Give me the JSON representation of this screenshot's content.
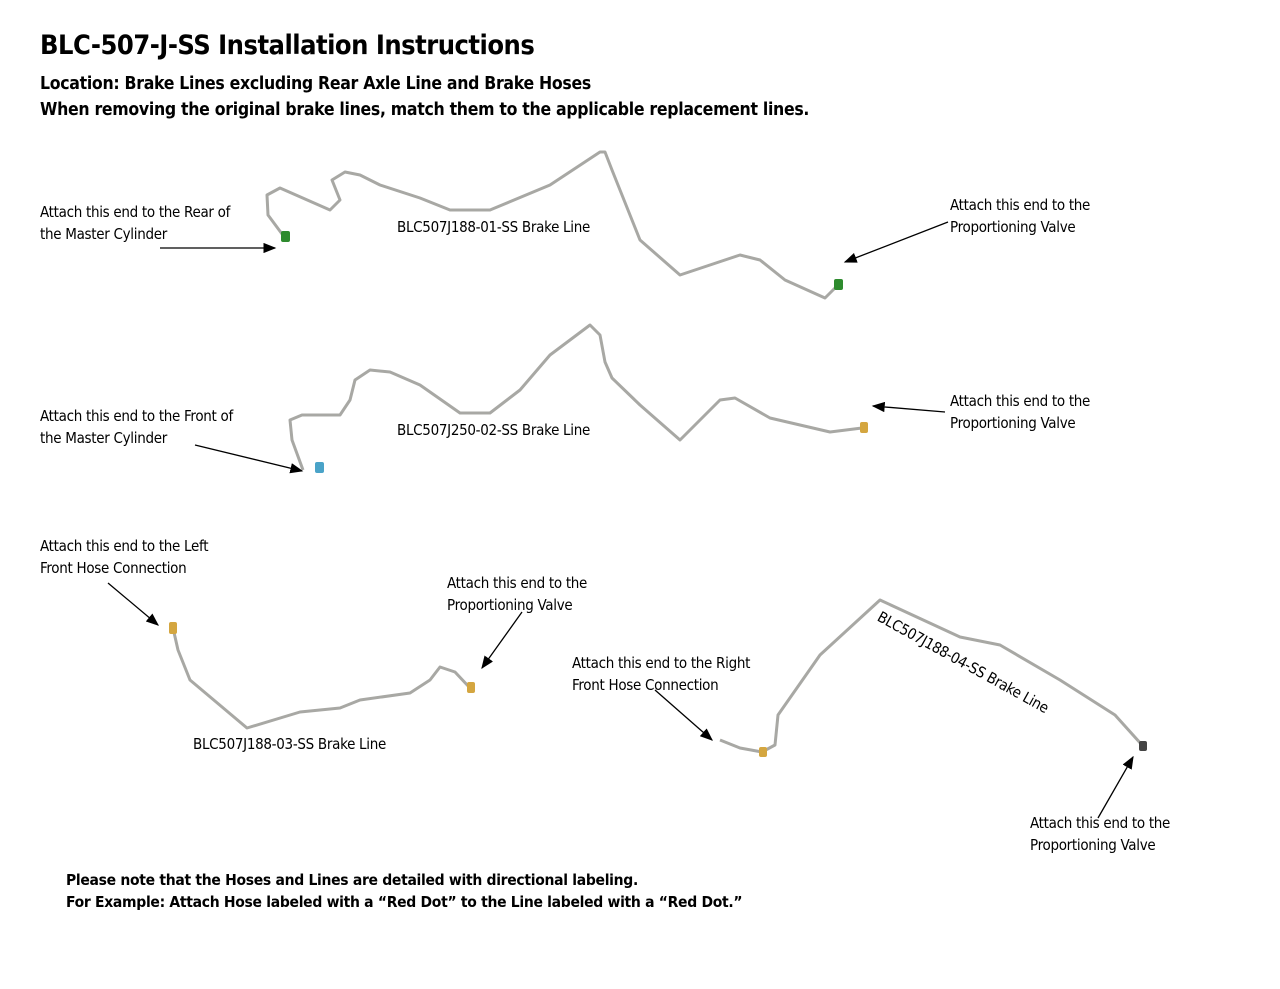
{
  "header": {
    "title": "BLC-507-J-SS Installation Instructions",
    "location": "Location: Brake Lines excluding Rear Axle Line and Brake Hoses",
    "instruction": "When removing the original brake lines, match them to the applicable replacement lines."
  },
  "lines": [
    {
      "name": "BLC507J188-01-SS Brake Line",
      "end_a": [
        "Attach this end to the Rear of",
        "the Master Cylinder"
      ],
      "end_b": [
        "Attach this end to the",
        "Proportioning Valve"
      ],
      "fitting_color": "#2e8b2e"
    },
    {
      "name": "BLC507J250-02-SS Brake Line",
      "end_a": [
        "Attach this end to the Front of",
        "the Master Cylinder"
      ],
      "end_b": [
        "Attach this end to the",
        "Proportioning Valve"
      ],
      "fitting_color_a": "#4aa3c8",
      "fitting_color_b": "#d4a640"
    },
    {
      "name": "BLC507J188-03-SS Brake Line",
      "end_a": [
        "Attach this end to the Left",
        "Front Hose Connection"
      ],
      "end_b": [
        "Attach this end to the",
        "Proportioning Valve"
      ],
      "fitting_color": "#d4a640"
    },
    {
      "name": "BLC507J188-04-SS Brake Line",
      "end_a": [
        "Attach this end to the Right",
        "Front Hose Connection"
      ],
      "end_b": [
        "Attach this end to the",
        "Proportioning Valve"
      ],
      "fitting_color": "#d4a640"
    }
  ],
  "notes": [
    "Please note that the Hoses and Lines are detailed with directional labeling.",
    "For Example: Attach Hose labeled with a “Red Dot” to the Line labeled with a “Red Dot.”"
  ]
}
